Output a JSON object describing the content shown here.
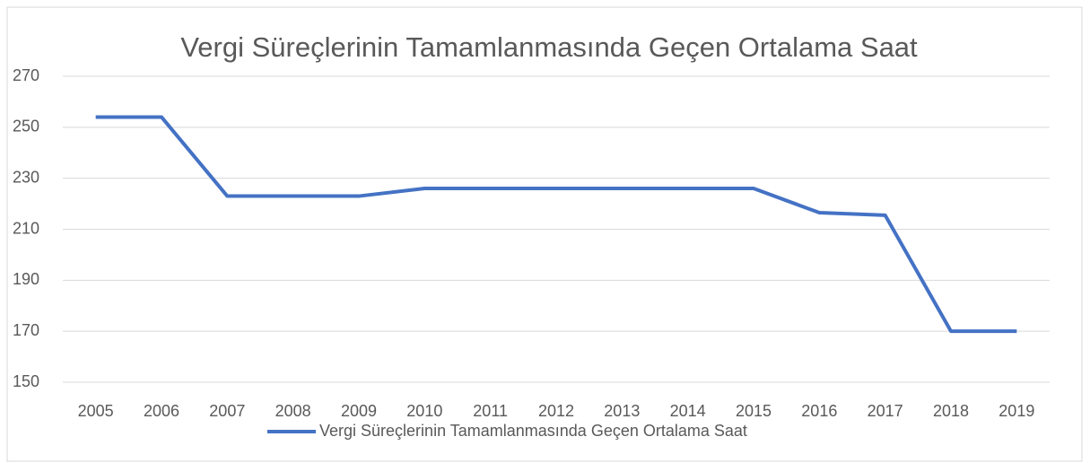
{
  "chart_data": {
    "type": "line",
    "title": "Vergi Süreçlerinin Tamamlanmasında Geçen Ortalama Saat",
    "categories": [
      "2005",
      "2006",
      "2007",
      "2008",
      "2009",
      "2010",
      "2011",
      "2012",
      "2013",
      "2014",
      "2015",
      "2016",
      "2017",
      "2018",
      "2019"
    ],
    "series": [
      {
        "name": "Vergi Süreçlerinin Tamamlanmasında Geçen Ortalama Saat",
        "color": "#4472c4",
        "values": [
          254,
          254,
          223,
          223,
          223,
          226,
          226,
          226,
          226,
          226,
          226,
          216.5,
          215.5,
          170,
          170
        ]
      }
    ],
    "ylim": [
      150,
      270
    ],
    "yticks": [
      150,
      170,
      190,
      210,
      230,
      250,
      270
    ],
    "grid": true,
    "legend": "bottom"
  }
}
